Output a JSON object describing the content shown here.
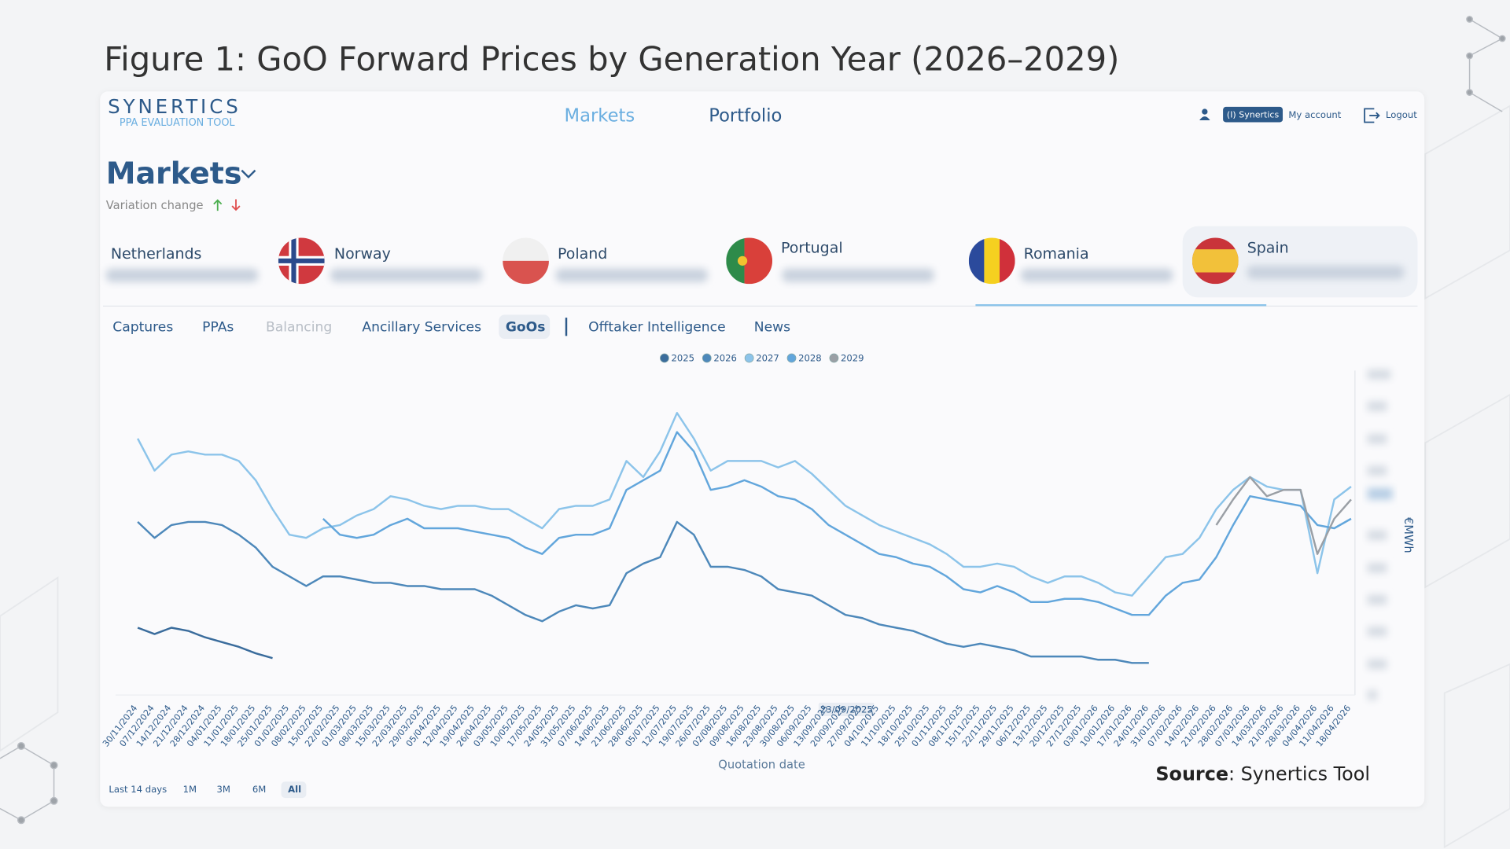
{
  "figure_title": "Figure 1: GoO Forward Prices by Generation Year (2026–2029)",
  "header": {
    "logo": "SYNERTICS",
    "logo_subtitle": "PPA EVALUATION TOOL",
    "nav": [
      "Markets",
      "Portfolio"
    ],
    "account_badge": "(I) Synertics",
    "my_account": "My account",
    "logout": "Logout"
  },
  "page": {
    "heading": "Markets",
    "variation_change": "Variation change",
    "countries": [
      "Netherlands",
      "Norway",
      "Poland",
      "Portugal",
      "Romania",
      "Spain"
    ],
    "tabs": [
      "Captures",
      "PPAs",
      "Balancing",
      "Ancillary Services",
      "GoOs",
      "Offtaker Intelligence",
      "News"
    ],
    "ranges": [
      "Last 14 days",
      "1M",
      "3M",
      "6M",
      "All"
    ]
  },
  "chart_data": {
    "type": "line",
    "x_label": "Quotation date",
    "y_label": "€MWh",
    "hover_label": "23/09/2025",
    "legend": "top",
    "categories": [
      "30/11/2024",
      "07/12/2024",
      "14/12/2024",
      "21/12/2024",
      "28/12/2024",
      "04/01/2025",
      "11/01/2025",
      "18/01/2025",
      "25/01/2025",
      "01/02/2025",
      "08/02/2025",
      "15/02/2025",
      "22/02/2025",
      "01/03/2025",
      "08/03/2025",
      "15/03/2025",
      "22/03/2025",
      "29/03/2025",
      "05/04/2025",
      "12/04/2025",
      "19/04/2025",
      "26/04/2025",
      "03/05/2025",
      "10/05/2025",
      "17/05/2025",
      "24/05/2025",
      "31/05/2025",
      "07/06/2025",
      "14/06/2025",
      "21/06/2025",
      "28/06/2025",
      "05/07/2025",
      "12/07/2025",
      "19/07/2025",
      "26/07/2025",
      "02/08/2025",
      "09/08/2025",
      "16/08/2025",
      "23/08/2025",
      "30/08/2025",
      "06/09/2025",
      "13/09/2025",
      "20/09/2025",
      "27/09/2025",
      "04/10/2025",
      "11/10/2025",
      "18/10/2025",
      "25/10/2025",
      "01/11/2025",
      "08/11/2025",
      "15/11/2025",
      "22/11/2025",
      "29/11/2025",
      "06/12/2025",
      "13/12/2025",
      "20/12/2025",
      "27/12/2025",
      "03/01/2026",
      "10/01/2026",
      "17/01/2026",
      "24/01/2026",
      "31/01/2026",
      "07/02/2026",
      "14/02/2026",
      "21/02/2026",
      "28/02/2026",
      "07/03/2026",
      "14/03/2026",
      "21/03/2026",
      "28/03/2026",
      "04/04/2026",
      "11/04/2026",
      "18/04/2026"
    ],
    "ylim": [
      0,
      10
    ],
    "series": [
      {
        "name": "2025",
        "color": "#3a6c9c",
        "values": [
          2.1,
          1.9,
          2.1,
          2.0,
          1.8,
          1.65,
          1.5,
          1.3,
          1.15,
          null,
          null,
          null,
          null,
          null,
          null,
          null,
          null,
          null,
          null,
          null,
          null,
          null,
          null,
          null,
          null,
          null,
          null,
          null,
          null,
          null,
          null,
          null,
          null,
          null,
          null,
          null,
          null,
          null,
          null,
          null,
          null,
          null,
          null,
          null,
          null,
          null,
          null,
          null,
          null,
          null,
          null,
          null,
          null,
          null,
          null,
          null,
          null,
          null,
          null,
          null,
          null,
          null,
          null,
          null,
          null,
          null,
          null,
          null,
          null,
          null,
          null,
          null,
          null
        ]
      },
      {
        "name": "2026",
        "color": "#4d88ba",
        "values": [
          5.4,
          4.9,
          5.3,
          5.4,
          5.4,
          5.3,
          5.0,
          4.6,
          4.0,
          3.7,
          3.4,
          3.7,
          3.7,
          3.6,
          3.5,
          3.5,
          3.4,
          3.4,
          3.3,
          3.3,
          3.3,
          3.1,
          2.8,
          2.5,
          2.3,
          2.6,
          2.8,
          2.7,
          2.8,
          3.8,
          4.1,
          4.3,
          5.4,
          5.0,
          4.0,
          4.0,
          3.9,
          3.7,
          3.3,
          3.2,
          3.1,
          2.8,
          2.5,
          2.4,
          2.2,
          2.1,
          2.0,
          1.8,
          1.6,
          1.5,
          1.6,
          1.5,
          1.4,
          1.2,
          1.2,
          1.2,
          1.2,
          1.1,
          1.1,
          1.0,
          1.0,
          null,
          null,
          null,
          null,
          null,
          null,
          null,
          null,
          null,
          null,
          null,
          null
        ]
      },
      {
        "name": "2027",
        "color": "#8cc4ea",
        "values": [
          8.0,
          7.0,
          7.5,
          7.6,
          7.5,
          7.5,
          7.3,
          6.7,
          5.8,
          5.0,
          4.9,
          5.2,
          5.3,
          5.6,
          5.8,
          6.2,
          6.1,
          5.9,
          5.8,
          5.9,
          5.9,
          5.8,
          5.8,
          5.5,
          5.2,
          5.8,
          5.9,
          5.9,
          6.1,
          7.3,
          6.8,
          7.6,
          8.8,
          8.0,
          7.0,
          7.3,
          7.3,
          7.3,
          7.1,
          7.3,
          6.9,
          6.4,
          5.9,
          5.6,
          5.3,
          5.1,
          4.9,
          4.7,
          4.4,
          4.0,
          4.0,
          4.1,
          4.0,
          3.7,
          3.5,
          3.7,
          3.7,
          3.5,
          3.2,
          3.1,
          3.7,
          4.3,
          4.4,
          4.9,
          5.8,
          6.4,
          6.8,
          6.5,
          6.4,
          6.4,
          3.8,
          6.1,
          6.5
        ]
      },
      {
        "name": "2028",
        "color": "#62a6dc",
        "values": [
          null,
          null,
          null,
          null,
          null,
          null,
          null,
          null,
          null,
          null,
          null,
          5.5,
          5.0,
          4.9,
          5.0,
          5.3,
          5.5,
          5.2,
          5.2,
          5.2,
          5.1,
          5.0,
          4.9,
          4.6,
          4.4,
          4.9,
          5.0,
          5.0,
          5.2,
          6.4,
          6.7,
          7.0,
          8.2,
          7.6,
          6.4,
          6.5,
          6.7,
          6.5,
          6.2,
          6.1,
          5.8,
          5.3,
          5.0,
          4.7,
          4.4,
          4.3,
          4.1,
          4.0,
          3.7,
          3.3,
          3.2,
          3.4,
          3.2,
          2.9,
          2.9,
          3.0,
          3.0,
          2.9,
          2.7,
          2.5,
          2.5,
          3.1,
          3.5,
          3.6,
          4.3,
          5.3,
          6.2,
          6.1,
          6.0,
          5.9,
          5.3,
          5.2,
          5.5
        ]
      },
      {
        "name": "2029",
        "color": "#9a9fa5",
        "values": [
          null,
          null,
          null,
          null,
          null,
          null,
          null,
          null,
          null,
          null,
          null,
          null,
          null,
          null,
          null,
          null,
          null,
          null,
          null,
          null,
          null,
          null,
          null,
          null,
          null,
          null,
          null,
          null,
          null,
          null,
          null,
          null,
          null,
          null,
          null,
          null,
          null,
          null,
          null,
          null,
          null,
          null,
          null,
          null,
          null,
          null,
          null,
          null,
          null,
          null,
          null,
          null,
          null,
          null,
          null,
          null,
          null,
          null,
          null,
          null,
          null,
          null,
          null,
          null,
          5.3,
          6.1,
          6.8,
          6.2,
          6.4,
          6.4,
          4.4,
          5.5,
          6.1
        ]
      }
    ]
  },
  "source": {
    "label": "Source",
    "text": ": Synertics Tool"
  }
}
